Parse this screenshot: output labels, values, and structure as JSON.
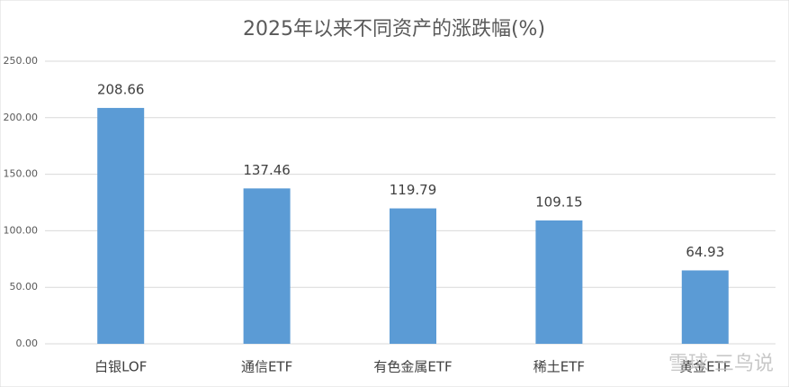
{
  "chart_data": {
    "type": "bar",
    "title": "2025年以来不同资产的涨跌幅(%)",
    "categories": [
      "白银LOF",
      "通信ETF",
      "有色金属ETF",
      "稀土ETF",
      "黄金ETF"
    ],
    "values": [
      208.66,
      137.46,
      119.79,
      109.15,
      64.93
    ],
    "color": "#5b9bd5",
    "ylim": [
      0,
      250
    ],
    "yticks": [
      {
        "value": 0,
        "label": "0.00"
      },
      {
        "value": 50,
        "label": "50.00"
      },
      {
        "value": 100,
        "label": "100.00"
      },
      {
        "value": 150,
        "label": "150.00"
      },
      {
        "value": 200,
        "label": "200.00"
      },
      {
        "value": 250,
        "label": "250.00"
      }
    ],
    "grid": true,
    "watermark": "雪球 三鸟说"
  }
}
